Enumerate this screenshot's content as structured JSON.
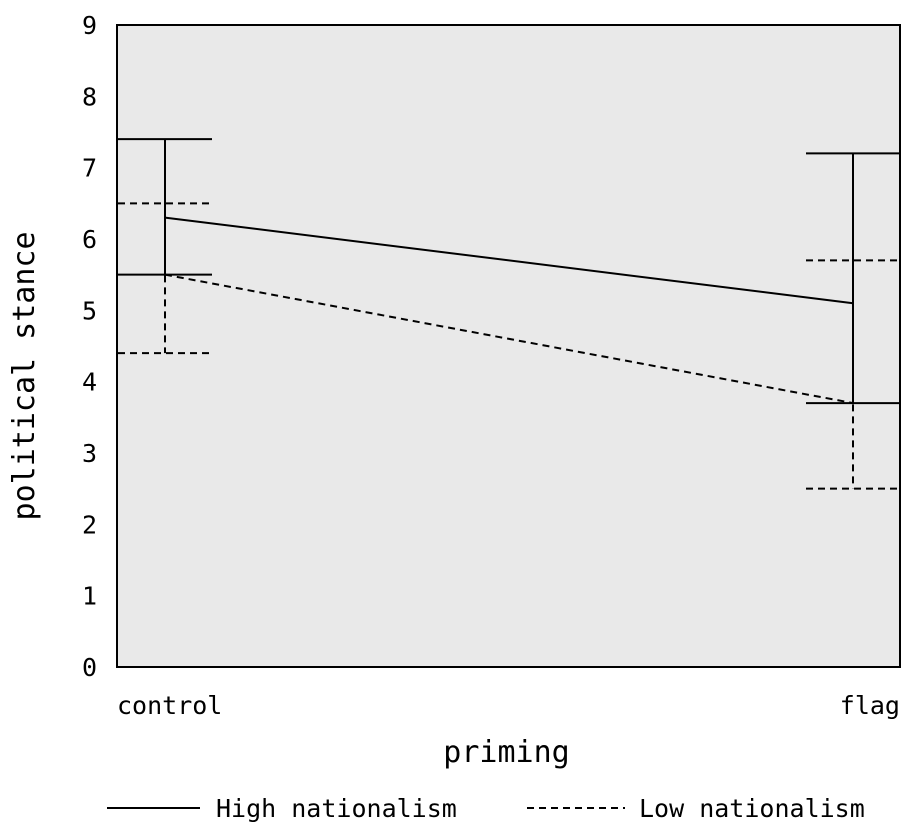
{
  "chart_data": {
    "type": "line",
    "xlabel": "priming",
    "ylabel": "political stance",
    "categories": [
      "control",
      "flag"
    ],
    "ylim": [
      0,
      9
    ],
    "yticks": [
      0,
      1,
      2,
      3,
      4,
      5,
      6,
      7,
      8,
      9
    ],
    "grid": false,
    "legend_position": "bottom",
    "series": [
      {
        "name": "High nationalism",
        "style": "solid",
        "values": [
          6.3,
          5.1
        ],
        "error_low": [
          5.5,
          3.7
        ],
        "error_high": [
          7.4,
          7.2
        ]
      },
      {
        "name": "Low nationalism",
        "style": "dashed",
        "values": [
          5.5,
          3.7
        ],
        "error_low": [
          4.4,
          2.5
        ],
        "error_high": [
          6.5,
          5.7
        ]
      }
    ],
    "colors": {
      "line": "#000000",
      "plot_background": "#e9e9e9"
    }
  }
}
